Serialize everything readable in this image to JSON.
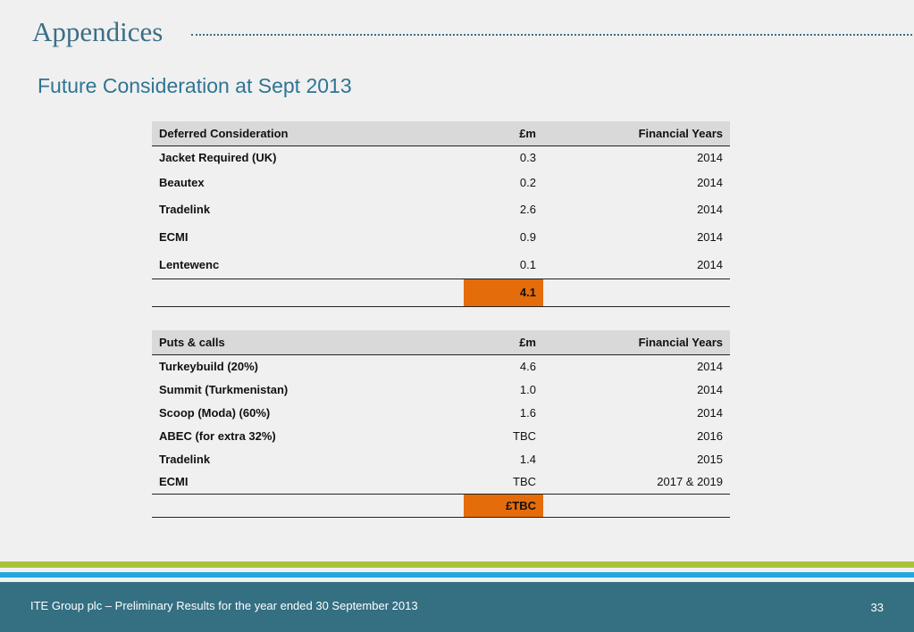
{
  "slide": {
    "title": "Appendices",
    "subtitle": "Future Consideration at Sept 2013"
  },
  "deferred": {
    "headers": [
      "Deferred Consideration",
      "£m",
      "Financial Years"
    ],
    "rows": [
      [
        "Jacket Required (UK)",
        "0.3",
        "2014"
      ],
      [
        "Beautex",
        "0.2",
        "2014"
      ],
      [
        "Tradelink",
        "2.6",
        "2014"
      ],
      [
        "ECMI",
        "0.9",
        "2014"
      ],
      [
        "Lentewenc",
        "0.1",
        "2014"
      ]
    ],
    "total": "4.1"
  },
  "puts_calls": {
    "headers": [
      "Puts & calls",
      "£m",
      "Financial Years"
    ],
    "rows": [
      [
        "Turkeybuild (20%)",
        "4.6",
        "2014"
      ],
      [
        "Summit (Turkmenistan)",
        "1.0",
        "2014"
      ],
      [
        "Scoop (Moda) (60%)",
        "1.6",
        "2014"
      ],
      [
        "ABEC (for extra 32%)",
        "TBC",
        "2016"
      ],
      [
        "Tradelink",
        "1.4",
        "2015"
      ],
      [
        "ECMI",
        "TBC",
        "2017 & 2019"
      ]
    ],
    "total": "£TBC"
  },
  "footer": {
    "text": "ITE Group plc – Preliminary Results for the year ended 30 September 2013",
    "page_number": "33"
  },
  "colors": {
    "title": "#3c6e86",
    "total_highlight": "#e46c0a",
    "stripe_green": "#a9c23a",
    "stripe_blue": "#21a7e0",
    "footer_bg": "#346f82"
  }
}
